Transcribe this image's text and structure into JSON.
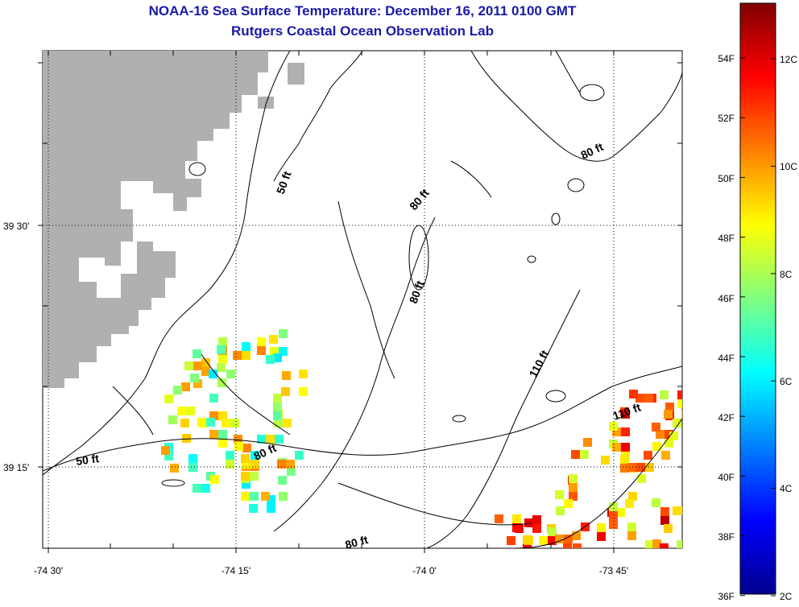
{
  "title": "NOAA-16 Sea Surface Temperature:  December 16, 2011 0100 GMT",
  "subtitle": "Rutgers Coastal Ocean Observation Lab",
  "x_ticks": [
    "-74 30'",
    "-74 15'",
    "-74 0'",
    "-73 45'"
  ],
  "y_ticks": [
    "39 30'",
    "39 15'"
  ],
  "depth_contours": [
    "50 ft",
    "50 ft",
    "80 ft",
    "80 ft",
    "80 ft",
    "80 ft",
    "110 ft",
    "110 ft",
    "80 ft"
  ],
  "colorbar": {
    "fahrenheit": [
      "54F",
      "52F",
      "50F",
      "48F",
      "46F",
      "44F",
      "42F",
      "40F",
      "38F",
      "36F"
    ],
    "celsius": [
      "12C",
      "10C",
      "8C",
      "6C",
      "4C",
      "2C"
    ]
  },
  "colors": {
    "title": "#1a1aa8",
    "land": "#b0b0b0",
    "cold": "#00008f",
    "warm": "#800000"
  }
}
